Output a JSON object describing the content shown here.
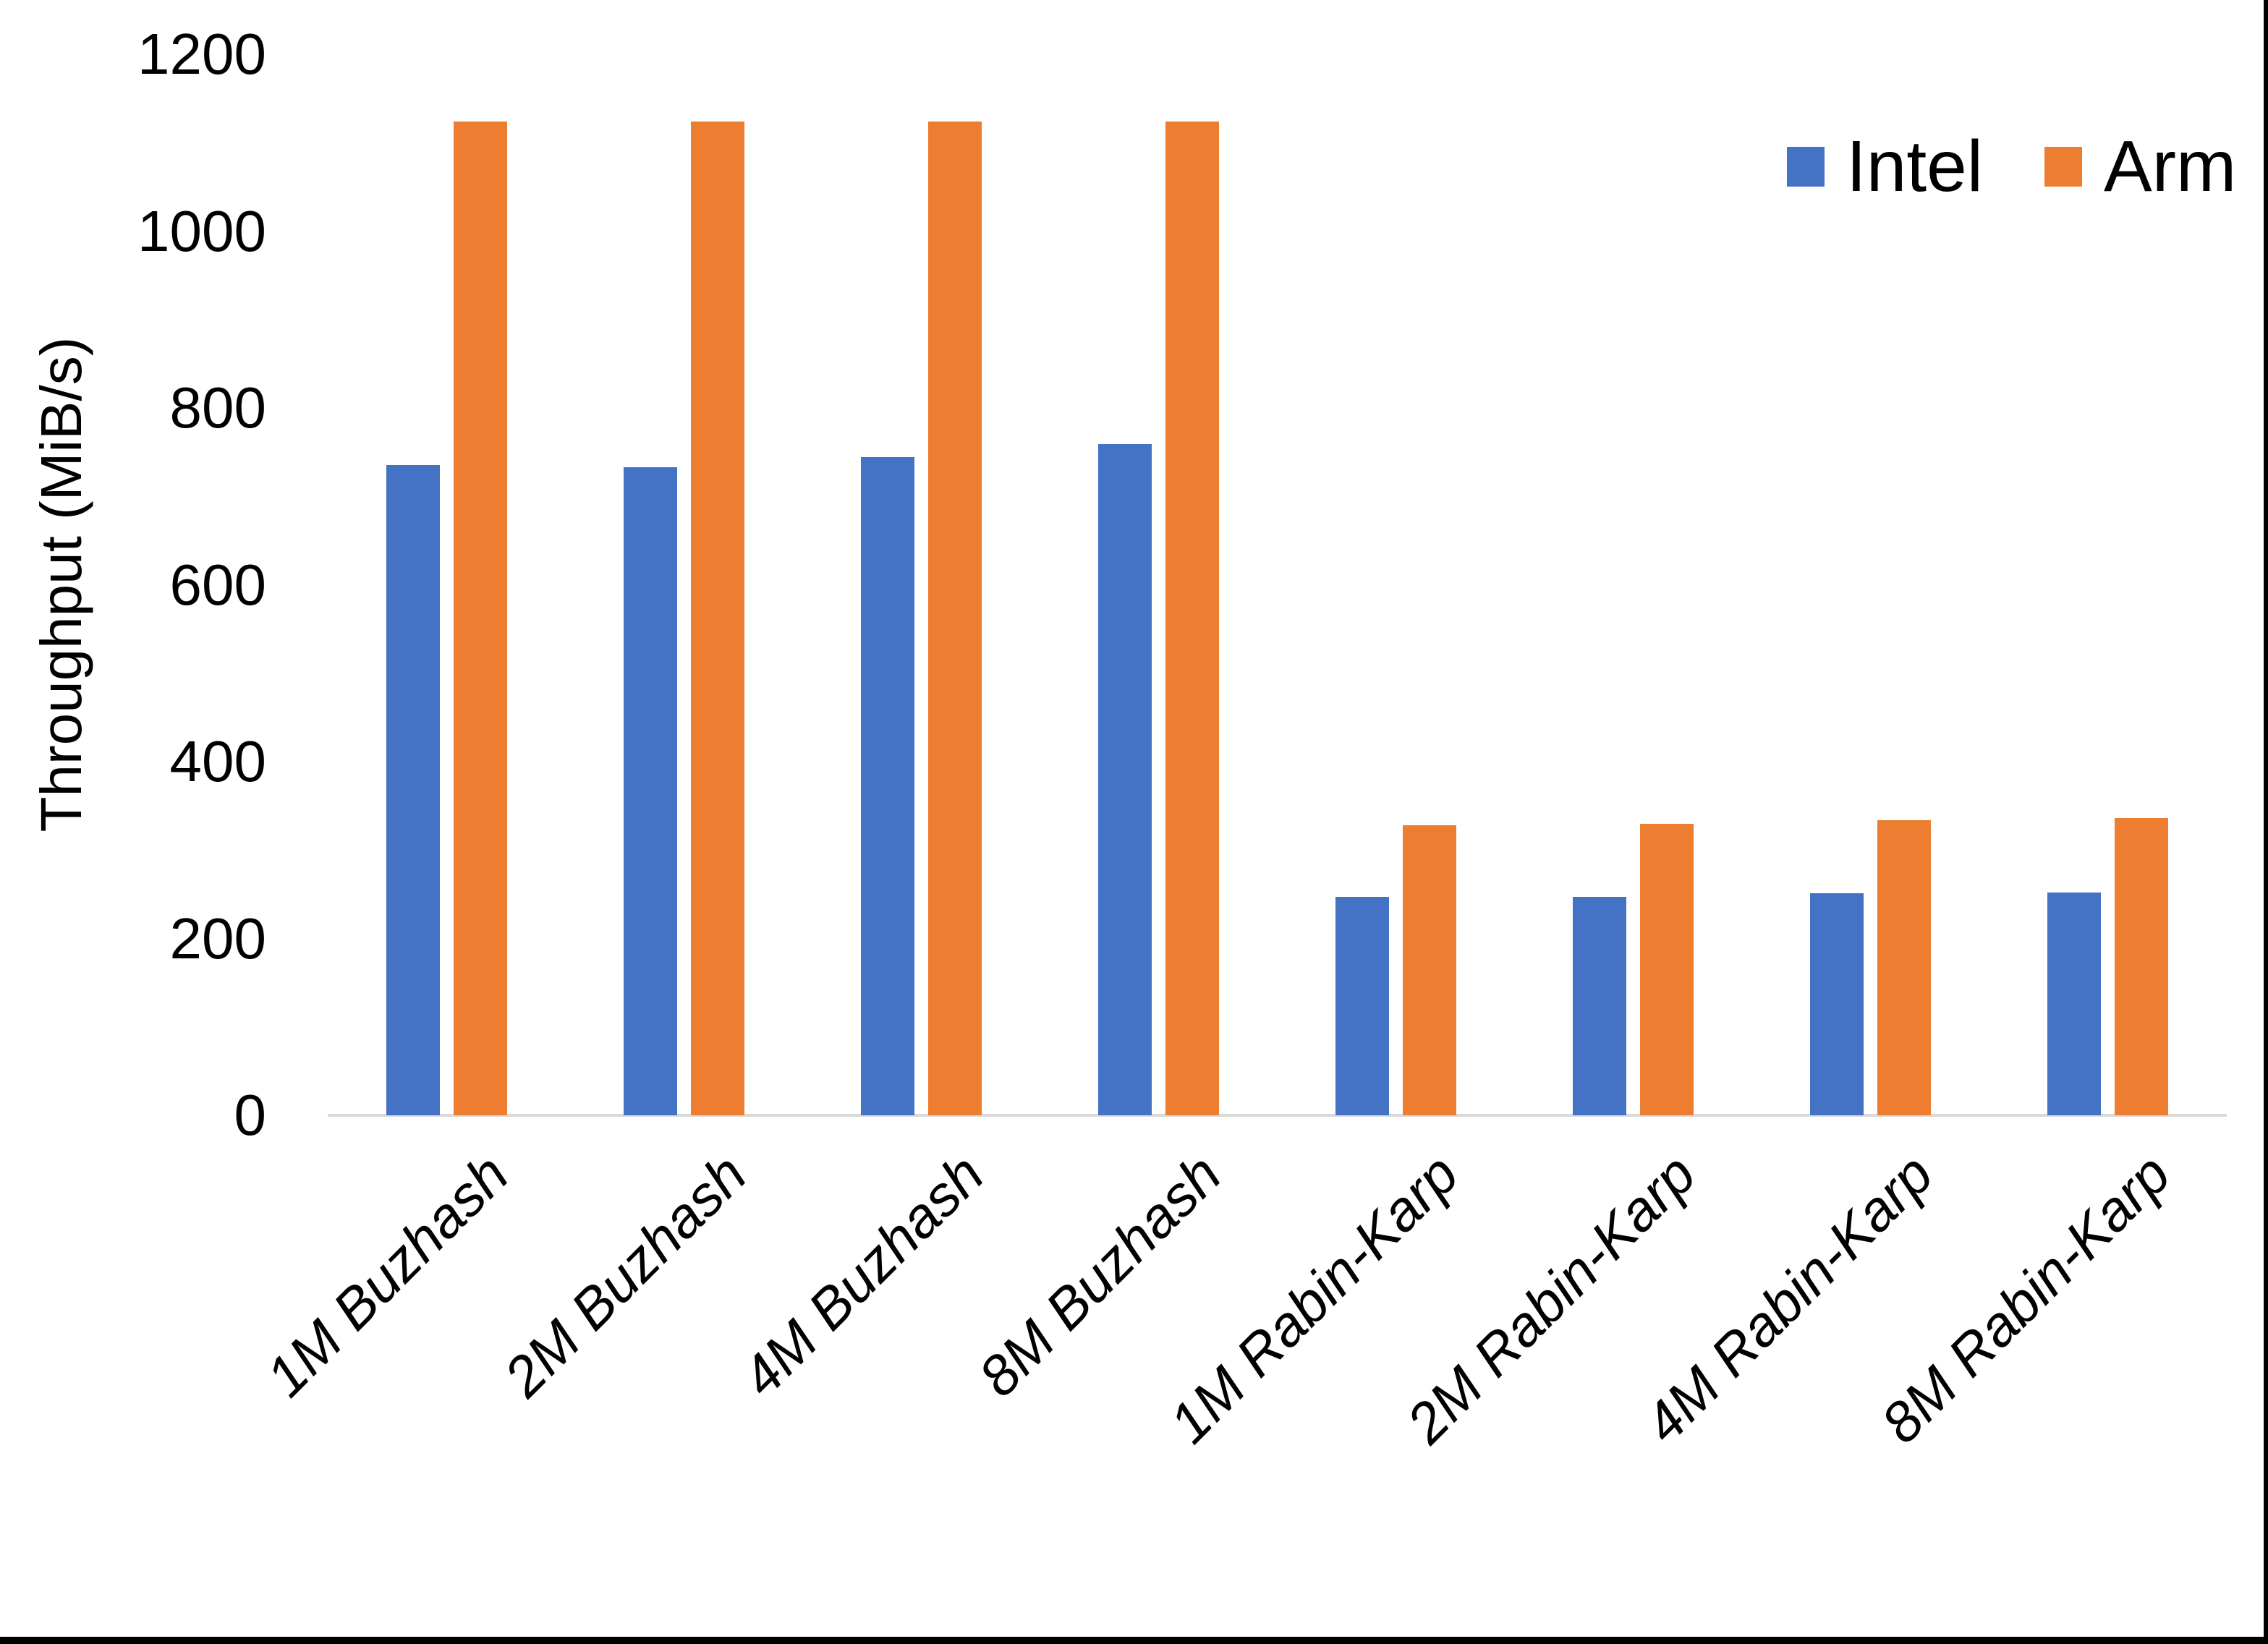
{
  "chart_data": {
    "type": "bar",
    "title": "",
    "xlabel": "",
    "ylabel": "Throughput (MiB/s)",
    "ylim": [
      0,
      1200
    ],
    "yticks": [
      0,
      200,
      400,
      600,
      800,
      1000,
      1200
    ],
    "grid": false,
    "legend_position": "top-right",
    "categories": [
      "1M Buzhash",
      "2M Buzhash",
      "4M Buzhash",
      "8M Buzhash",
      "1M Rabin-Karp",
      "2M Rabin-Karp",
      "4M Rabin-Karp",
      "8M Rabin-Karp"
    ],
    "series": [
      {
        "name": "Intel",
        "color": "#4472C4",
        "values": [
          735,
          733,
          744,
          759,
          247,
          247,
          251,
          252
        ]
      },
      {
        "name": "Arm",
        "color": "#ED7D31",
        "values": [
          1124,
          1124,
          1124,
          1124,
          328,
          330,
          334,
          336
        ]
      }
    ]
  },
  "colors": {
    "background": "#FFFFFF",
    "axis_line": "#D9D9D9",
    "text": "#000000",
    "frame": "#000000"
  }
}
